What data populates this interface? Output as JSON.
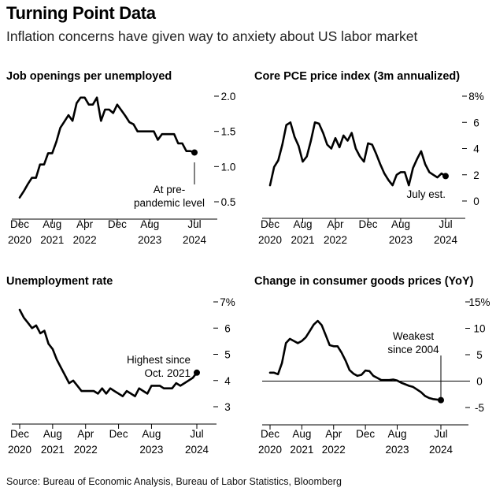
{
  "header": {
    "title": "Turning Point Data",
    "subtitle": "Inflation concerns have given way to anxiety about US labor market"
  },
  "source": "Source: Bureau of Economic Analysis, Bureau of Labor Statistics, Bloomberg",
  "colors": {
    "line": "#000000",
    "zero_line": "#000000",
    "background": "#ffffff"
  },
  "chart_data": [
    {
      "id": "job-openings",
      "type": "line",
      "title": "Job openings per unemployed",
      "x_ticks": [
        {
          "x": "2020-12",
          "line1": "Dec",
          "line2": "2020"
        },
        {
          "x": "2021-08",
          "line1": "Aug",
          "line2": "2021"
        },
        {
          "x": "2022-04",
          "line1": "Apr",
          "line2": "2022"
        },
        {
          "x": "2022-12",
          "line1": "Dec",
          "line2": ""
        },
        {
          "x": "2023-08",
          "line1": "Aug",
          "line2": "2023"
        },
        {
          "x": "2024-07",
          "line1": "Jul",
          "line2": "2024"
        }
      ],
      "y_ticks": [
        {
          "v": 2.0,
          "label": "2.0"
        },
        {
          "v": 1.5,
          "label": "1.5"
        },
        {
          "v": 1.0,
          "label": "1.0"
        },
        {
          "v": 0.5,
          "label": "0.5"
        }
      ],
      "ylim": [
        0.5,
        2.0
      ],
      "xlim": [
        "2020-12",
        "2024-07"
      ],
      "grid": false,
      "series": [
        {
          "x": [
            "2020-12",
            "2021-01",
            "2021-02",
            "2021-03",
            "2021-04",
            "2021-05",
            "2021-06",
            "2021-07",
            "2021-08",
            "2021-09",
            "2021-10",
            "2021-11",
            "2021-12",
            "2022-01",
            "2022-02",
            "2022-03",
            "2022-04",
            "2022-05",
            "2022-06",
            "2022-07",
            "2022-08",
            "2022-09",
            "2022-10",
            "2022-11",
            "2022-12",
            "2023-01",
            "2023-02",
            "2023-03",
            "2023-04",
            "2023-05",
            "2023-06",
            "2023-07",
            "2023-08",
            "2023-09",
            "2023-10",
            "2023-11",
            "2023-12",
            "2024-01",
            "2024-02",
            "2024-03",
            "2024-04",
            "2024-05",
            "2024-06",
            "2024-07"
          ],
          "y": [
            0.56,
            0.65,
            0.75,
            0.84,
            0.84,
            1.03,
            1.03,
            1.19,
            1.19,
            1.35,
            1.55,
            1.64,
            1.73,
            1.65,
            1.9,
            1.98,
            1.98,
            1.88,
            1.88,
            1.98,
            1.65,
            1.81,
            1.81,
            1.76,
            1.88,
            1.8,
            1.72,
            1.63,
            1.6,
            1.5,
            1.5,
            1.5,
            1.5,
            1.5,
            1.38,
            1.46,
            1.46,
            1.46,
            1.46,
            1.33,
            1.33,
            1.22,
            1.22,
            1.2
          ]
        }
      ],
      "end_point": {
        "x": "2024-07",
        "y": 1.2
      },
      "annotation": {
        "lines": [
          "At pre-",
          "pandemic level"
        ]
      }
    },
    {
      "id": "core-pce",
      "type": "line",
      "title": "Core PCE price index (3m annualized)",
      "x_ticks": [
        {
          "x": "2020-12",
          "line1": "Dec",
          "line2": "2020"
        },
        {
          "x": "2021-08",
          "line1": "Aug",
          "line2": "2021"
        },
        {
          "x": "2022-04",
          "line1": "Apr",
          "line2": "2022"
        },
        {
          "x": "2022-12",
          "line1": "Dec",
          "line2": ""
        },
        {
          "x": "2023-08",
          "line1": "Aug",
          "line2": "2023"
        },
        {
          "x": "2024-07",
          "line1": "Jul",
          "line2": "2024"
        }
      ],
      "y_ticks": [
        {
          "v": 8,
          "label": "8%"
        },
        {
          "v": 6,
          "label": "6"
        },
        {
          "v": 4,
          "label": "4"
        },
        {
          "v": 2,
          "label": "2"
        },
        {
          "v": 0,
          "label": "0"
        }
      ],
      "ylim": [
        0,
        8
      ],
      "xlim": [
        "2020-12",
        "2024-07"
      ],
      "grid": false,
      "series": [
        {
          "x": [
            "2020-12",
            "2021-01",
            "2021-02",
            "2021-03",
            "2021-04",
            "2021-05",
            "2021-06",
            "2021-07",
            "2021-08",
            "2021-09",
            "2021-10",
            "2021-11",
            "2021-12",
            "2022-01",
            "2022-02",
            "2022-03",
            "2022-04",
            "2022-05",
            "2022-06",
            "2022-07",
            "2022-08",
            "2022-09",
            "2022-10",
            "2022-11",
            "2022-12",
            "2023-01",
            "2023-02",
            "2023-03",
            "2023-04",
            "2023-05",
            "2023-06",
            "2023-07",
            "2023-08",
            "2023-09",
            "2023-10",
            "2023-11",
            "2023-12",
            "2024-01",
            "2024-02",
            "2024-03",
            "2024-04",
            "2024-05",
            "2024-06",
            "2024-07"
          ],
          "y": [
            1.2,
            2.6,
            3.1,
            4.3,
            5.8,
            6.0,
            4.9,
            4.2,
            3.0,
            3.4,
            4.6,
            6.0,
            5.9,
            5.2,
            4.3,
            4.0,
            4.8,
            4.1,
            5.0,
            4.6,
            5.2,
            4.0,
            3.4,
            3.0,
            4.4,
            4.3,
            3.6,
            2.8,
            2.1,
            1.6,
            1.2,
            2.0,
            2.2,
            2.2,
            1.2,
            2.5,
            3.2,
            3.8,
            2.8,
            2.2,
            2.0,
            1.8,
            2.1,
            1.9
          ]
        }
      ],
      "end_point": {
        "x": "2024-07",
        "y": 1.9
      },
      "annotation": {
        "lines": [
          "July est."
        ]
      }
    },
    {
      "id": "unemployment-rate",
      "type": "line",
      "title": "Unemployment rate",
      "x_ticks": [
        {
          "x": "2020-12",
          "line1": "Dec",
          "line2": "2020"
        },
        {
          "x": "2021-08",
          "line1": "Aug",
          "line2": "2021"
        },
        {
          "x": "2022-04",
          "line1": "Apr",
          "line2": "2022"
        },
        {
          "x": "2022-12",
          "line1": "Dec",
          "line2": ""
        },
        {
          "x": "2023-08",
          "line1": "Aug",
          "line2": "2023"
        },
        {
          "x": "2024-07",
          "line1": "Jul",
          "line2": "2024"
        }
      ],
      "y_ticks": [
        {
          "v": 7,
          "label": "7%"
        },
        {
          "v": 6,
          "label": "6"
        },
        {
          "v": 5,
          "label": "5"
        },
        {
          "v": 4,
          "label": "4"
        },
        {
          "v": 3,
          "label": "3"
        }
      ],
      "ylim": [
        3,
        7
      ],
      "xlim": [
        "2020-12",
        "2024-07"
      ],
      "grid": false,
      "series": [
        {
          "x": [
            "2020-12",
            "2021-01",
            "2021-02",
            "2021-03",
            "2021-04",
            "2021-05",
            "2021-06",
            "2021-07",
            "2021-08",
            "2021-09",
            "2021-10",
            "2021-11",
            "2021-12",
            "2022-01",
            "2022-02",
            "2022-03",
            "2022-04",
            "2022-05",
            "2022-06",
            "2022-07",
            "2022-08",
            "2022-09",
            "2022-10",
            "2022-11",
            "2022-12",
            "2023-01",
            "2023-02",
            "2023-03",
            "2023-04",
            "2023-05",
            "2023-06",
            "2023-07",
            "2023-08",
            "2023-09",
            "2023-10",
            "2023-11",
            "2023-12",
            "2024-01",
            "2024-02",
            "2024-03",
            "2024-04",
            "2024-05",
            "2024-06",
            "2024-07"
          ],
          "y": [
            6.7,
            6.4,
            6.2,
            6.0,
            6.1,
            5.8,
            5.9,
            5.4,
            5.2,
            4.8,
            4.5,
            4.2,
            3.9,
            4.0,
            3.8,
            3.6,
            3.6,
            3.6,
            3.6,
            3.5,
            3.7,
            3.5,
            3.7,
            3.6,
            3.5,
            3.4,
            3.6,
            3.5,
            3.4,
            3.7,
            3.6,
            3.5,
            3.8,
            3.8,
            3.8,
            3.7,
            3.7,
            3.7,
            3.9,
            3.8,
            3.9,
            4.0,
            4.1,
            4.3
          ]
        }
      ],
      "end_point": {
        "x": "2024-07",
        "y": 4.3
      },
      "annotation": {
        "lines": [
          "Highest since",
          "Oct. 2021"
        ]
      }
    },
    {
      "id": "consumer-goods",
      "type": "line",
      "title": "Change in consumer goods prices (YoY)",
      "x_ticks": [
        {
          "x": "2020-12",
          "line1": "Dec",
          "line2": "2020"
        },
        {
          "x": "2021-08",
          "line1": "Aug",
          "line2": "2021"
        },
        {
          "x": "2022-04",
          "line1": "Apr",
          "line2": "2022"
        },
        {
          "x": "2022-12",
          "line1": "Dec",
          "line2": ""
        },
        {
          "x": "2023-08",
          "line1": "Aug",
          "line2": "2023"
        },
        {
          "x": "2024-07",
          "line1": "Jul",
          "line2": "2024"
        }
      ],
      "y_ticks": [
        {
          "v": 15,
          "label": "15%"
        },
        {
          "v": 10,
          "label": "10"
        },
        {
          "v": 5,
          "label": "5"
        },
        {
          "v": 0,
          "label": "0"
        },
        {
          "v": -5,
          "label": "-5"
        }
      ],
      "ylim": [
        -5,
        15
      ],
      "xlim": [
        "2020-12",
        "2024-07"
      ],
      "grid": false,
      "zero_line": 0,
      "series": [
        {
          "x": [
            "2020-12",
            "2021-01",
            "2021-02",
            "2021-03",
            "2021-04",
            "2021-05",
            "2021-06",
            "2021-07",
            "2021-08",
            "2021-09",
            "2021-10",
            "2021-11",
            "2021-12",
            "2022-01",
            "2022-02",
            "2022-03",
            "2022-04",
            "2022-05",
            "2022-06",
            "2022-07",
            "2022-08",
            "2022-09",
            "2022-10",
            "2022-11",
            "2022-12",
            "2023-01",
            "2023-02",
            "2023-03",
            "2023-04",
            "2023-05",
            "2023-06",
            "2023-07",
            "2023-08",
            "2023-09",
            "2023-10",
            "2023-11",
            "2023-12",
            "2024-01",
            "2024-02",
            "2024-03",
            "2024-04",
            "2024-05",
            "2024-06",
            "2024-07"
          ],
          "y": [
            1.6,
            1.6,
            1.3,
            3.4,
            7.2,
            8.0,
            7.6,
            7.2,
            7.6,
            8.3,
            9.5,
            10.7,
            11.4,
            10.6,
            8.7,
            6.8,
            6.6,
            6.6,
            5.4,
            3.9,
            2.1,
            1.4,
            1.0,
            1.2,
            2.0,
            1.9,
            1.0,
            0.6,
            0.2,
            0.2,
            0.2,
            0.3,
            0.1,
            -0.3,
            -0.6,
            -0.9,
            -1.1,
            -1.6,
            -2.1,
            -2.8,
            -3.2,
            -3.4,
            -3.5,
            -3.6
          ]
        }
      ],
      "end_point": {
        "x": "2024-07",
        "y": -3.6
      },
      "annotation": {
        "lines": [
          "Weakest",
          "since 2004"
        ]
      }
    }
  ]
}
